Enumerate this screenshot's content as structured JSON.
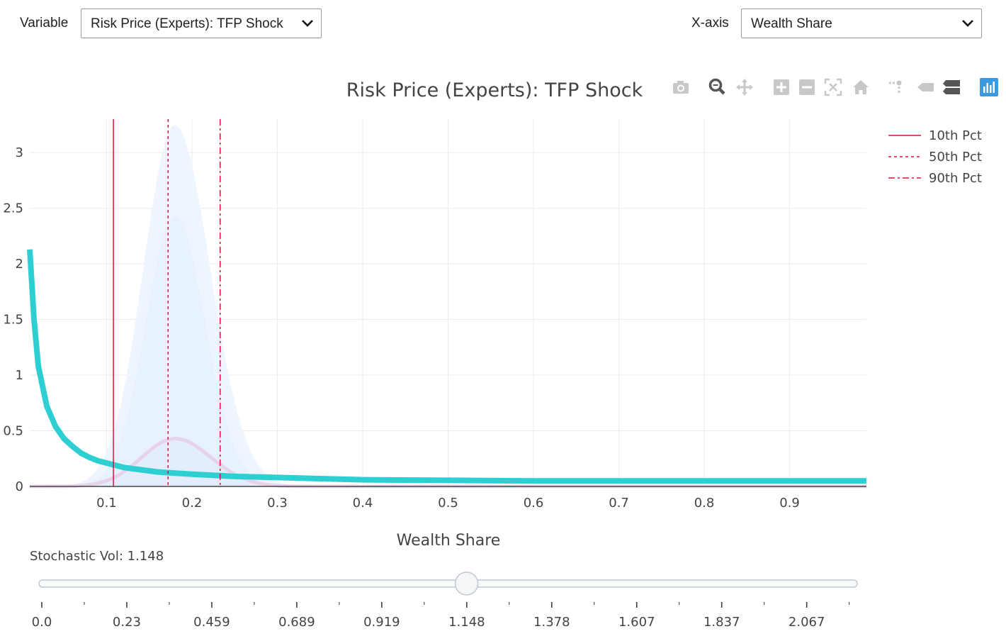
{
  "controls": {
    "variable_label": "Variable",
    "variable_value": "Risk Price (Experts): TFP Shock",
    "xaxis_label": "X-axis",
    "xaxis_value": "Wealth Share"
  },
  "toolbar": [
    {
      "name": "camera-icon"
    },
    {
      "name": "zoom-icon"
    },
    {
      "name": "pan-icon"
    },
    {
      "name": "zoom-in-icon"
    },
    {
      "name": "zoom-out-icon"
    },
    {
      "name": "autoscale-icon"
    },
    {
      "name": "reset-axes-icon"
    },
    {
      "name": "spike-lines-icon"
    },
    {
      "name": "hover-closest-icon"
    },
    {
      "name": "hover-compare-icon"
    },
    {
      "name": "plotly-logo-icon"
    }
  ],
  "chart_data": {
    "type": "line",
    "title": "Risk Price (Experts): TFP Shock",
    "xlabel": "Wealth Share",
    "ylabel": "",
    "xlim": [
      0.01,
      0.99
    ],
    "ylim": [
      0,
      3.3
    ],
    "grid": true,
    "legend_position": "top-right",
    "x_ticks": [
      "0.1",
      "0.2",
      "0.3",
      "0.4",
      "0.5",
      "0.6",
      "0.7",
      "0.8",
      "0.9"
    ],
    "y_ticks": [
      "0",
      "0.5",
      "1",
      "1.5",
      "2",
      "2.5",
      "3"
    ],
    "series": [
      {
        "color": "#2ecfd3",
        "x": [
          0.01,
          0.015,
          0.02,
          0.03,
          0.04,
          0.05,
          0.06,
          0.07,
          0.08,
          0.09,
          0.1,
          0.12,
          0.14,
          0.16,
          0.18,
          0.2,
          0.25,
          0.3,
          0.35,
          0.4,
          0.5,
          0.6,
          0.7,
          0.8,
          0.9,
          0.99
        ],
        "y": [
          2.13,
          1.5,
          1.08,
          0.72,
          0.54,
          0.43,
          0.36,
          0.3,
          0.26,
          0.23,
          0.21,
          0.17,
          0.15,
          0.13,
          0.12,
          0.11,
          0.09,
          0.08,
          0.07,
          0.06,
          0.055,
          0.05,
          0.05,
          0.05,
          0.05,
          0.05
        ]
      }
    ],
    "density_shading": {
      "color": "#ddeeff",
      "peak_x": 0.18,
      "peak_y": 3.25
    },
    "density_curve_small": {
      "color": "#e6cce6",
      "peak_x": 0.18,
      "peak_y": 0.43
    },
    "percentile_lines": [
      {
        "name": "10th Pct",
        "x": 0.108,
        "style": "solid",
        "color": "#dc143c"
      },
      {
        "name": "50th Pct",
        "x": 0.172,
        "style": "dot",
        "color": "#dc143c"
      },
      {
        "name": "90th Pct",
        "x": 0.233,
        "style": "dashdot",
        "color": "#dc143c"
      }
    ]
  },
  "slider": {
    "label": "Stochastic Vol:",
    "value": "1.148",
    "min": 0,
    "max": 2.2,
    "current": 1.148,
    "tick_labels": [
      "0.0",
      "0.23",
      "0.459",
      "0.689",
      "0.919",
      "1.148",
      "1.378",
      "1.607",
      "1.837",
      "2.067"
    ]
  }
}
